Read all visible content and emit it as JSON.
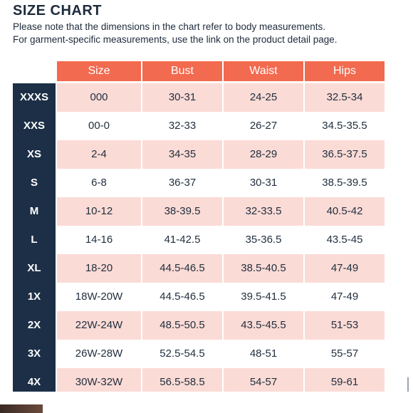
{
  "page": {
    "title": "SIZE CHART",
    "note_line1": "Please note that the dimensions in the chart refer to body measurements.",
    "note_line2": "For garment-specific measurements, use the link on the product detail page."
  },
  "colors": {
    "header_bg": "#f26a4f",
    "side_bg": "#1c2f47",
    "row_pink": "#fbdbd6",
    "row_white": "#ffffff"
  },
  "table": {
    "headers": [
      "Size",
      "Bust",
      "Waist",
      "Hips"
    ],
    "rows": [
      {
        "label": "XXXS",
        "size": "000",
        "bust": "30-31",
        "waist": "24-25",
        "hips": "32.5-34"
      },
      {
        "label": "XXS",
        "size": "00-0",
        "bust": "32-33",
        "waist": "26-27",
        "hips": "34.5-35.5"
      },
      {
        "label": "XS",
        "size": "2-4",
        "bust": "34-35",
        "waist": "28-29",
        "hips": "36.5-37.5"
      },
      {
        "label": "S",
        "size": "6-8",
        "bust": "36-37",
        "waist": "30-31",
        "hips": "38.5-39.5"
      },
      {
        "label": "M",
        "size": "10-12",
        "bust": "38-39.5",
        "waist": "32-33.5",
        "hips": "40.5-42"
      },
      {
        "label": "L",
        "size": "14-16",
        "bust": "41-42.5",
        "waist": "35-36.5",
        "hips": "43.5-45"
      },
      {
        "label": "XL",
        "size": "18-20",
        "bust": "44.5-46.5",
        "waist": "38.5-40.5",
        "hips": "47-49"
      },
      {
        "label": "1X",
        "size": "18W-20W",
        "bust": "44.5-46.5",
        "waist": "39.5-41.5",
        "hips": "47-49"
      },
      {
        "label": "2X",
        "size": "22W-24W",
        "bust": "48.5-50.5",
        "waist": "43.5-45.5",
        "hips": "51-53"
      },
      {
        "label": "3X",
        "size": "26W-28W",
        "bust": "52.5-54.5",
        "waist": "48-51",
        "hips": "55-57"
      },
      {
        "label": "4X",
        "size": "30W-32W",
        "bust": "56.5-58.5",
        "waist": "54-57",
        "hips": "59-61"
      }
    ]
  }
}
